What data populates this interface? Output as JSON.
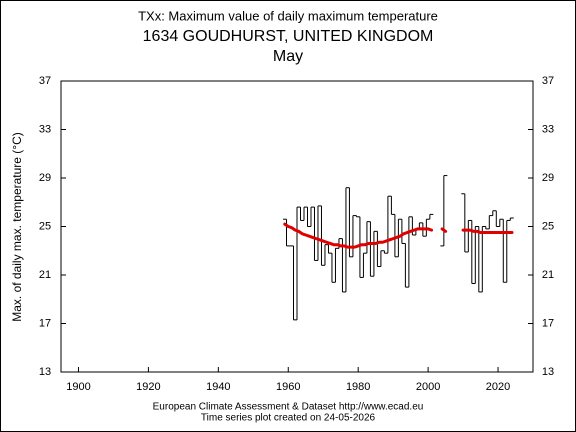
{
  "chart_data": {
    "type": "line",
    "title": "TXx: Maximum value of daily maximum temperature",
    "subtitle": "1634 GOUDHURST, UNITED KINGDOM",
    "period": "May",
    "y_label": "Max. of daily max. temperature (°C)",
    "footer": [
      "European Climate Assessment & Dataset  http://www.ecad.eu",
      "Time series plot created on 24-05-2026"
    ],
    "x": [
      1959,
      1960,
      1961,
      1962,
      1963,
      1964,
      1965,
      1966,
      1967,
      1968,
      1969,
      1970,
      1971,
      1972,
      1973,
      1974,
      1975,
      1976,
      1977,
      1978,
      1979,
      1980,
      1981,
      1982,
      1983,
      1984,
      1985,
      1986,
      1987,
      1988,
      1989,
      1990,
      1991,
      1992,
      1993,
      1994,
      1995,
      1996,
      1997,
      1998,
      1999,
      2000,
      2001,
      2002,
      2003,
      2004,
      2005,
      2006,
      2007,
      2008,
      2009,
      2010,
      2011,
      2012,
      2013,
      2014,
      2015,
      2016,
      2017,
      2018,
      2019,
      2020,
      2021,
      2022,
      2023,
      2024
    ],
    "series": [
      {
        "color": "#000000",
        "style": "step",
        "values": [
          25.6,
          23.4,
          23.4,
          17.3,
          26.6,
          25.5,
          26.6,
          25.0,
          26.6,
          22.2,
          26.7,
          21.8,
          23.5,
          22.8,
          20.4,
          23.2,
          24.0,
          19.6,
          28.2,
          22.5,
          25.9,
          25.8,
          20.8,
          22.8,
          25.4,
          20.9,
          24.6,
          21.7,
          23.0,
          22.8,
          27.5,
          26.0,
          22.5,
          25.6,
          23.6,
          20.0,
          25.8,
          24.3,
          24.8,
          25.3,
          24.2,
          25.6,
          26.0,
          null,
          null,
          23.4,
          29.2,
          null,
          null,
          null,
          null,
          27.7,
          22.9,
          25.5,
          20.3,
          25.0,
          19.6,
          25.0,
          24.8,
          25.9,
          26.3,
          25.0,
          25.6,
          20.4,
          25.5,
          25.7
        ]
      },
      {
        "color": "#e00000",
        "style": "smooth",
        "values": [
          25.2,
          25.0,
          24.9,
          24.7,
          24.6,
          24.4,
          24.3,
          24.2,
          24.1,
          24.0,
          23.9,
          23.8,
          23.7,
          23.6,
          23.5,
          23.5,
          23.4,
          23.4,
          23.3,
          23.3,
          23.3,
          23.4,
          23.5,
          23.5,
          23.6,
          23.6,
          23.6,
          23.7,
          23.7,
          23.8,
          23.9,
          24.0,
          24.1,
          24.2,
          24.4,
          24.5,
          24.6,
          24.7,
          24.8,
          24.8,
          24.8,
          24.8,
          24.7,
          null,
          null,
          24.8,
          24.6,
          null,
          null,
          null,
          null,
          24.7,
          24.7,
          24.7,
          24.6,
          24.6,
          24.5,
          24.5,
          24.5,
          24.5,
          24.5,
          24.5,
          24.5,
          24.5,
          24.5,
          24.5
        ]
      }
    ],
    "xlim": [
      1895,
      2030
    ],
    "xticks": [
      1900,
      1920,
      1940,
      1960,
      1980,
      2000,
      2020
    ],
    "ylim": [
      13,
      37
    ],
    "yticks": [
      13,
      17,
      21,
      25,
      29,
      33,
      37
    ],
    "grid": false
  }
}
